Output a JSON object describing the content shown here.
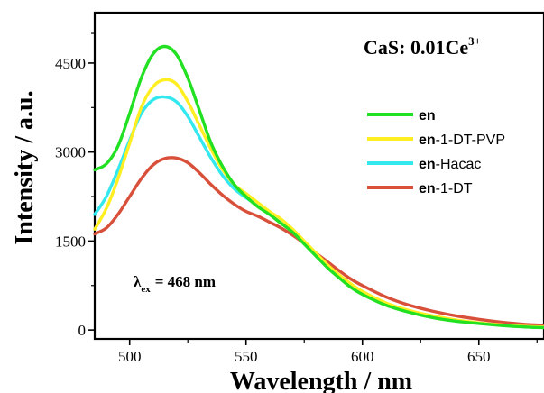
{
  "chart_data": {
    "type": "line",
    "xlabel": "Wavelength / nm",
    "ylabel": "Intensity / a.u.",
    "xlim": [
      485,
      678
    ],
    "ylim": [
      -150,
      5350
    ],
    "x_ticks": [
      500,
      550,
      600,
      650
    ],
    "y_ticks": [
      0,
      1500,
      3000,
      4500
    ],
    "x_tick_labels": [
      "500",
      "550",
      "600",
      "650"
    ],
    "y_tick_labels": [
      "0",
      "1500",
      "3000",
      "4500"
    ],
    "grid": false,
    "legend_position": "right",
    "annotations": {
      "title_main": "CaS: 0.01Ce",
      "title_sup": "3+",
      "excitation_lambda": "λ",
      "excitation_sub": "ex",
      "excitation_value": "= 468 nm"
    },
    "series": [
      {
        "name": "en",
        "legend_bold": "en",
        "legend_rest": "",
        "color": "#22e022",
        "x": [
          485,
          490,
          495,
          500,
          505,
          510,
          515,
          520,
          525,
          530,
          535,
          540,
          545,
          550,
          555,
          560,
          565,
          570,
          575,
          580,
          585,
          590,
          595,
          600,
          610,
          620,
          630,
          640,
          650,
          660,
          670,
          678
        ],
        "y": [
          2700,
          2800,
          3100,
          3650,
          4250,
          4650,
          4780,
          4650,
          4250,
          3700,
          3150,
          2750,
          2450,
          2250,
          2080,
          1950,
          1800,
          1650,
          1450,
          1250,
          1050,
          880,
          720,
          600,
          420,
          300,
          210,
          150,
          110,
          75,
          50,
          40
        ]
      },
      {
        "name": "en-1-DT-PVP",
        "legend_bold": "en",
        "legend_rest": "-1-DT-PVP",
        "color": "#ffee22",
        "x": [
          485,
          490,
          495,
          500,
          505,
          510,
          515,
          520,
          525,
          530,
          535,
          540,
          545,
          550,
          555,
          560,
          565,
          570,
          575,
          580,
          585,
          590,
          595,
          600,
          610,
          620,
          630,
          640,
          650,
          660,
          670,
          678
        ],
        "y": [
          1700,
          2050,
          2550,
          3150,
          3750,
          4100,
          4220,
          4150,
          3850,
          3450,
          3050,
          2700,
          2450,
          2300,
          2150,
          2000,
          1870,
          1700,
          1500,
          1300,
          1100,
          930,
          780,
          650,
          460,
          330,
          240,
          170,
          120,
          85,
          60,
          50
        ]
      },
      {
        "name": "en-Hacac",
        "legend_bold": "en",
        "legend_rest": "-Hacac",
        "color": "#33e8ee",
        "x": [
          485,
          490,
          495,
          500,
          505,
          510,
          515,
          520,
          525,
          530,
          535,
          540,
          545,
          550,
          555,
          560,
          565,
          570,
          575,
          580,
          585,
          590,
          595,
          600,
          610,
          620,
          630,
          640,
          650,
          660,
          670,
          678
        ],
        "y": [
          1950,
          2250,
          2700,
          3200,
          3650,
          3880,
          3930,
          3850,
          3600,
          3250,
          2900,
          2600,
          2380,
          2230,
          2100,
          1970,
          1850,
          1680,
          1480,
          1280,
          1080,
          900,
          750,
          630,
          450,
          320,
          230,
          165,
          115,
          80,
          55,
          45
        ]
      },
      {
        "name": "en-1-DT",
        "legend_bold": "en",
        "legend_rest": "-1-DT",
        "color": "#d9503a",
        "x": [
          485,
          490,
          495,
          500,
          505,
          510,
          515,
          520,
          525,
          530,
          535,
          540,
          545,
          550,
          555,
          560,
          565,
          570,
          575,
          580,
          585,
          590,
          595,
          600,
          610,
          620,
          630,
          640,
          650,
          660,
          670,
          678
        ],
        "y": [
          1620,
          1720,
          1950,
          2250,
          2550,
          2780,
          2890,
          2900,
          2820,
          2650,
          2450,
          2270,
          2120,
          2000,
          1920,
          1820,
          1720,
          1600,
          1460,
          1300,
          1150,
          1000,
          860,
          750,
          560,
          420,
          320,
          240,
          180,
          130,
          95,
          80
        ]
      }
    ]
  }
}
